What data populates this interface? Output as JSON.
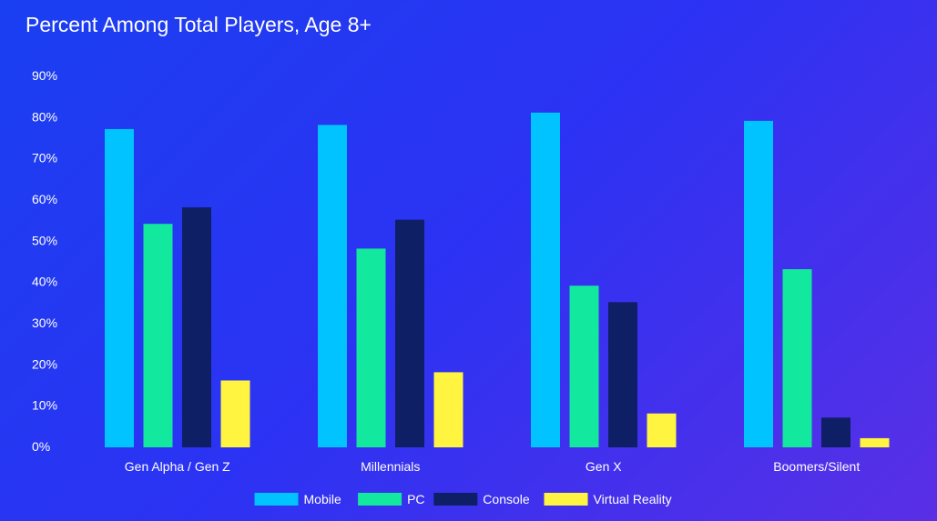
{
  "chart_data": {
    "type": "bar",
    "title": "Percent Among Total Players, Age 8+",
    "categories": [
      "Gen Alpha / Gen Z",
      "Millennials",
      "Gen X",
      "Boomers/Silent"
    ],
    "series": [
      {
        "name": "Mobile",
        "color": "#00c3ff",
        "values": [
          77,
          78,
          81,
          79
        ]
      },
      {
        "name": "PC",
        "color": "#12e89e",
        "values": [
          54,
          48,
          39,
          43
        ]
      },
      {
        "name": "Console",
        "color": "#0e1f66",
        "values": [
          58,
          55,
          35,
          7
        ]
      },
      {
        "name": "Virtual Reality",
        "color": "#fff540",
        "values": [
          16,
          18,
          8,
          2
        ]
      }
    ],
    "y_ticks": [
      "0%",
      "10%",
      "20%",
      "30%",
      "40%",
      "50%",
      "60%",
      "70%",
      "80%",
      "90%"
    ],
    "ylim": [
      0,
      90
    ],
    "xlabel": "",
    "ylabel": "",
    "grid": false,
    "legend_position": "bottom-center"
  }
}
